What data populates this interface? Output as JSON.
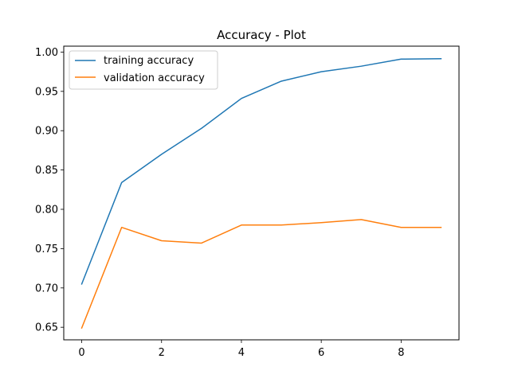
{
  "chart_data": {
    "type": "line",
    "title": "Accuracy - Plot",
    "xlabel": "",
    "ylabel": "",
    "x": [
      0,
      1,
      2,
      3,
      4,
      5,
      6,
      7,
      8,
      9
    ],
    "xlim": [
      -0.45,
      9.45
    ],
    "ylim": [
      0.634,
      1.0075
    ],
    "x_ticks": [
      0,
      2,
      4,
      6,
      8
    ],
    "y_ticks": [
      0.65,
      0.7,
      0.75,
      0.8,
      0.85,
      0.9,
      0.95,
      1.0
    ],
    "y_tick_labels": [
      "0.65",
      "0.70",
      "0.75",
      "0.80",
      "0.85",
      "0.90",
      "0.95",
      "1.00"
    ],
    "grid": false,
    "legend_position": "top-left",
    "series": [
      {
        "name": "training accuracy",
        "color": "#1f77b4",
        "values": [
          0.705,
          0.834,
          0.87,
          0.903,
          0.941,
          0.963,
          0.975,
          0.982,
          0.991,
          0.9915
        ]
      },
      {
        "name": "validation accuracy",
        "color": "#ff7f0e",
        "values": [
          0.649,
          0.777,
          0.76,
          0.757,
          0.78,
          0.78,
          0.783,
          0.787,
          0.777,
          0.777
        ]
      }
    ]
  }
}
